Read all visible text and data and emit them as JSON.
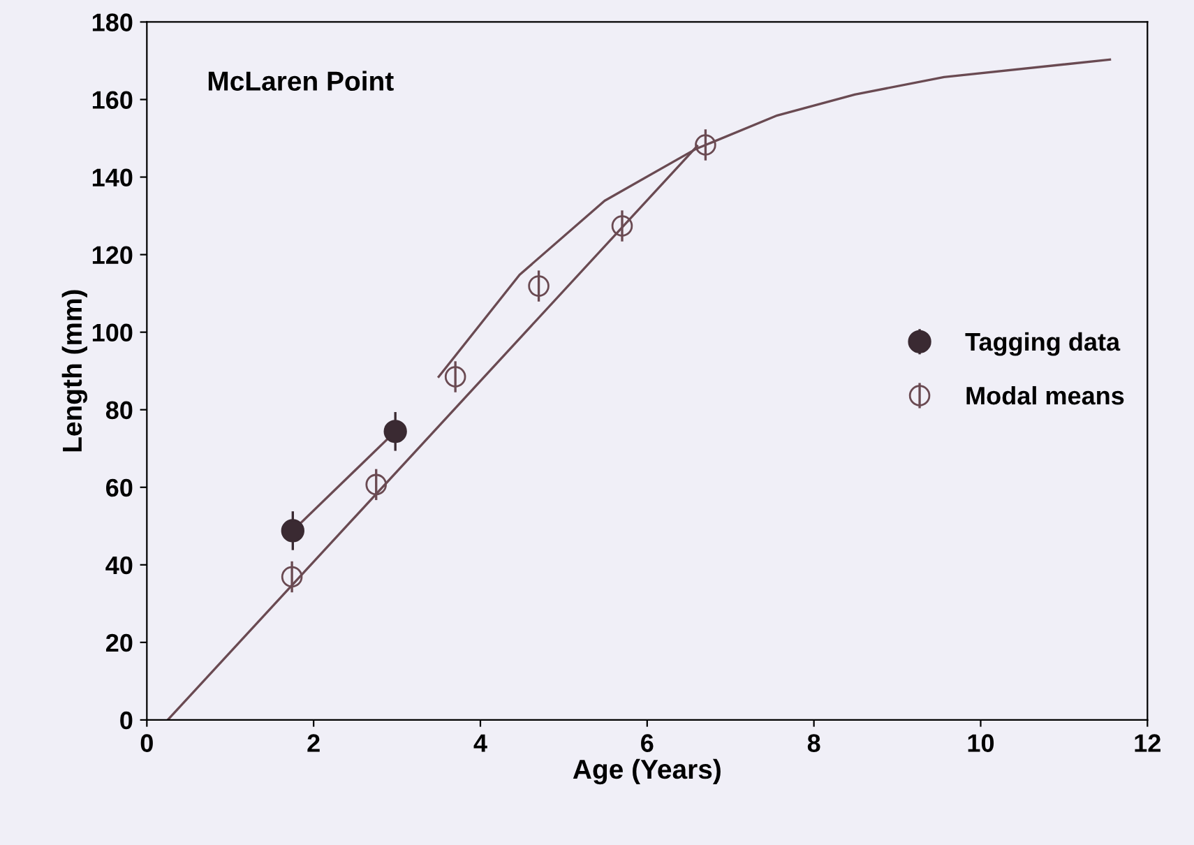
{
  "chart_data": {
    "type": "scatter",
    "title": "McLaren Point",
    "xlabel": "Age (Years)",
    "ylabel": "Length (mm)",
    "xlim": [
      0,
      12
    ],
    "xticks": [
      0,
      2,
      4,
      6,
      8,
      10,
      12
    ],
    "ylim": [
      0,
      180
    ],
    "yticks": [
      0,
      20,
      40,
      60,
      80,
      100,
      120,
      140,
      160,
      180
    ],
    "grid": false,
    "legend": "right",
    "series": [
      {
        "name": "Tagging data",
        "marker": "circle",
        "color": "#3a2a32",
        "x": [
          1.75,
          2.98
        ],
        "values": [
          48.8,
          74.4
        ],
        "errors": [
          5,
          5
        ]
      },
      {
        "name": "Modal means",
        "marker": "circle",
        "color": "#6a4a52",
        "x": [
          1.74,
          2.75,
          3.7,
          4.7,
          5.7,
          6.7
        ],
        "values": [
          36.9,
          60.7,
          88.5,
          111.9,
          127.4,
          148.3
        ],
        "errors": [
          4,
          4,
          4,
          4,
          4,
          4
        ]
      },
      {
        "type": "line",
        "color": "#6a4a52",
        "x": [
          1.75,
          2.98
        ],
        "values": [
          48.8,
          74.4
        ]
      },
      {
        "type": "line",
        "color": "#6a4a52",
        "x": [
          0.25,
          6.6
        ],
        "values": [
          0,
          148
        ]
      },
      {
        "type": "line",
        "color": "#6a4a52",
        "x": [
          3.5,
          4.47,
          5.49,
          6.58,
          7.56,
          8.49,
          9.56,
          11.55
        ],
        "values": [
          88.5,
          114.8,
          133.9,
          147.2,
          155.9,
          161.3,
          165.8,
          170.3
        ]
      }
    ]
  }
}
